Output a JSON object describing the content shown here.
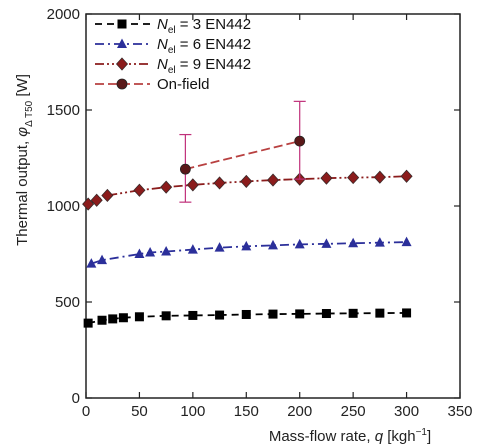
{
  "chart_data": {
    "type": "line",
    "xlabel_main": "Mass-flow rate, ",
    "xlabel_var": "q",
    "xlabel_unit": " [kgh",
    "xlabel_sup": "−1",
    "xlabel_end": "]",
    "ylabel_main": "Thermal output, ",
    "ylabel_var": "φ",
    "ylabel_sub": "Δ T50",
    "ylabel_unit": " [W]",
    "xlim": [
      0,
      350
    ],
    "ylim": [
      0,
      2000
    ],
    "xticks": [
      "0",
      "50",
      "100",
      "150",
      "200",
      "250",
      "300",
      "350"
    ],
    "yticks": [
      "0",
      "500",
      "1000",
      "1500",
      "2000"
    ],
    "legend_position": "top-left",
    "series": [
      {
        "name_prefix": "N",
        "name_sub": "el",
        "name_suffix": " = 3 EN442",
        "color": "#000000",
        "marker": "square",
        "dash": "7,5",
        "x": [
          2,
          15,
          25,
          35,
          50,
          75,
          100,
          125,
          150,
          175,
          200,
          225,
          250,
          275,
          300
        ],
        "y": [
          390,
          405,
          412,
          418,
          423,
          428,
          430,
          432,
          435,
          437,
          438,
          440,
          441,
          442,
          443
        ]
      },
      {
        "name_prefix": "N",
        "name_sub": "el",
        "name_suffix": " = 6 EN442",
        "color": "#2b2f9a",
        "marker": "triangle",
        "dash": "9,4,2,4",
        "x": [
          5,
          15,
          50,
          60,
          75,
          100,
          125,
          150,
          175,
          200,
          225,
          250,
          275,
          300
        ],
        "y": [
          700,
          718,
          750,
          758,
          763,
          773,
          783,
          790,
          795,
          800,
          803,
          806,
          809,
          812
        ]
      },
      {
        "name_prefix": "N",
        "name_sub": "el",
        "name_suffix": " = 9 EN442",
        "color": "#8b1c1c",
        "marker": "diamond",
        "dash": "9,3,2,3,2,3",
        "x": [
          2,
          10,
          20,
          50,
          75,
          100,
          125,
          150,
          175,
          200,
          225,
          250,
          275,
          300
        ],
        "y": [
          1010,
          1030,
          1055,
          1082,
          1098,
          1110,
          1120,
          1128,
          1135,
          1140,
          1145,
          1148,
          1150,
          1155
        ]
      },
      {
        "name": "On-field",
        "color": "#5a1818",
        "line_color": "#b84040",
        "marker": "circle",
        "dash": "9,4",
        "x": [
          93,
          200
        ],
        "y": [
          1192,
          1338
        ],
        "err": [
          [
            1020,
            1372
          ],
          [
            1140,
            1545
          ]
        ]
      }
    ]
  }
}
